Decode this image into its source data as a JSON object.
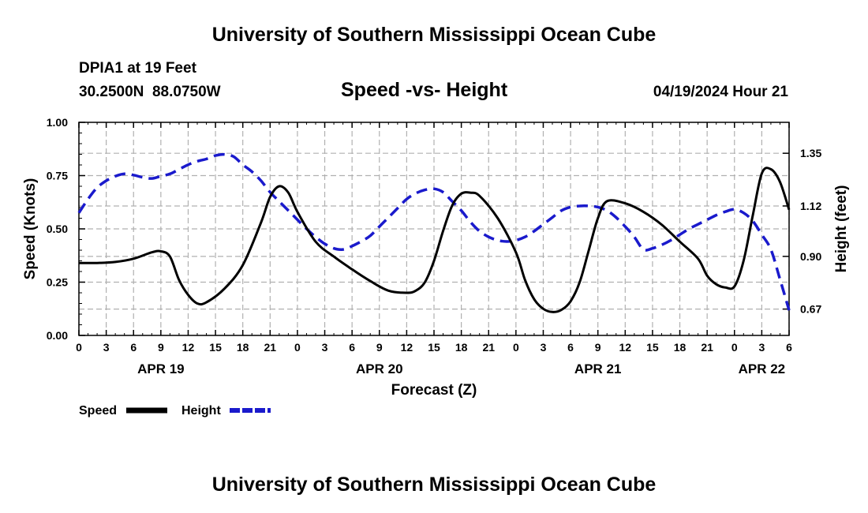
{
  "page": {
    "title": "University of Southern Mississippi Ocean Cube",
    "footer_title": "University of Southern Mississippi Ocean Cube",
    "station": "DPIA1 at 19 Feet",
    "coords": "30.2500N  88.0750W",
    "chart_title": "Speed -vs- Height",
    "datetime": "04/19/2024 Hour 21"
  },
  "colors": {
    "speed": "#000000",
    "height": "#1a1acc",
    "grid": "#b0b0b0"
  },
  "chart_data": {
    "type": "line",
    "title": "Speed -vs- Height",
    "xlabel": "Forecast (Z)",
    "ylabel_left": "Speed (Knots)",
    "ylabel_right": "Height (feet)",
    "x_range_hours": [
      0,
      78
    ],
    "x_tick_step_hours": 3,
    "x_tick_labels": [
      "0",
      "3",
      "6",
      "9",
      "12",
      "15",
      "18",
      "21",
      "0",
      "3",
      "6",
      "9",
      "12",
      "15",
      "18",
      "21",
      "0",
      "3",
      "6",
      "9",
      "12",
      "15",
      "18",
      "21",
      "0",
      "3",
      "6"
    ],
    "day_labels": [
      {
        "label": "APR 19",
        "hour": 9
      },
      {
        "label": "APR 20",
        "hour": 33
      },
      {
        "label": "APR 21",
        "hour": 57
      },
      {
        "label": "APR 22",
        "hour": 75
      }
    ],
    "y_left": {
      "range": [
        0,
        1
      ],
      "ticks": [
        "0.00",
        "0.25",
        "0.50",
        "0.75",
        "1.00"
      ],
      "tick_values": [
        0,
        0.25,
        0.5,
        0.75,
        1.0
      ]
    },
    "y_right": {
      "range": [
        0.555,
        1.485
      ],
      "ticks": [
        "0.67",
        "0.90",
        "1.12",
        "1.35"
      ],
      "tick_values": [
        0.67,
        0.9,
        1.12,
        1.35
      ]
    },
    "legend": {
      "placement": "bottom-left",
      "entries": [
        "Speed",
        "Height"
      ]
    },
    "series": [
      {
        "name": "Speed",
        "axis": "left",
        "style": "solid",
        "x": [
          0,
          2,
          4,
          6,
          8,
          9,
          10,
          11,
          12,
          13,
          14,
          16,
          18,
          20,
          21,
          22,
          23,
          24,
          26,
          28,
          30,
          32,
          34,
          36,
          37,
          38,
          39,
          40,
          41,
          42,
          43,
          44,
          46,
          48,
          49,
          50,
          51,
          52,
          53,
          54,
          55,
          56,
          57,
          58,
          60,
          62,
          64,
          66,
          68,
          69,
          70,
          71,
          72,
          73,
          74,
          75,
          76,
          77,
          78
        ],
        "values": [
          0.34,
          0.34,
          0.345,
          0.36,
          0.39,
          0.395,
          0.37,
          0.26,
          0.19,
          0.15,
          0.155,
          0.22,
          0.33,
          0.53,
          0.65,
          0.7,
          0.67,
          0.58,
          0.44,
          0.37,
          0.31,
          0.255,
          0.21,
          0.2,
          0.21,
          0.25,
          0.35,
          0.49,
          0.61,
          0.665,
          0.67,
          0.655,
          0.55,
          0.39,
          0.26,
          0.17,
          0.125,
          0.11,
          0.12,
          0.16,
          0.25,
          0.4,
          0.55,
          0.63,
          0.62,
          0.58,
          0.52,
          0.44,
          0.36,
          0.28,
          0.24,
          0.225,
          0.23,
          0.35,
          0.56,
          0.76,
          0.78,
          0.72,
          0.59
        ]
      },
      {
        "name": "Height",
        "axis": "right",
        "style": "dashed",
        "x": [
          0,
          1,
          2,
          3,
          4,
          5,
          6,
          7,
          8,
          9,
          10,
          11,
          12,
          13,
          14,
          15,
          16,
          17,
          18,
          19,
          20,
          21,
          22,
          23,
          24,
          25,
          26,
          27,
          28,
          29,
          30,
          31,
          32,
          33,
          34,
          35,
          36,
          37,
          38,
          39,
          40,
          41,
          42,
          43,
          44,
          45,
          46,
          47,
          48,
          49,
          50,
          51,
          52,
          53,
          54,
          55,
          56,
          57,
          58,
          59,
          60,
          61,
          62,
          63,
          64,
          65,
          66,
          67,
          68,
          69,
          70,
          71,
          72,
          73,
          74,
          75,
          76,
          77,
          78
        ],
        "values": [
          1.09,
          1.15,
          1.2,
          1.23,
          1.25,
          1.26,
          1.255,
          1.245,
          1.24,
          1.25,
          1.26,
          1.28,
          1.3,
          1.315,
          1.325,
          1.34,
          1.345,
          1.335,
          1.3,
          1.27,
          1.23,
          1.18,
          1.14,
          1.1,
          1.06,
          1.02,
          0.985,
          0.955,
          0.935,
          0.93,
          0.945,
          0.965,
          0.99,
          1.03,
          1.07,
          1.11,
          1.15,
          1.175,
          1.19,
          1.195,
          1.18,
          1.14,
          1.1,
          1.05,
          1.01,
          0.985,
          0.97,
          0.965,
          0.97,
          0.985,
          1.01,
          1.04,
          1.07,
          1.1,
          1.115,
          1.12,
          1.12,
          1.115,
          1.1,
          1.07,
          1.03,
          0.985,
          0.93,
          0.935,
          0.95,
          0.97,
          0.995,
          1.02,
          1.04,
          1.06,
          1.08,
          1.095,
          1.105,
          1.09,
          1.055,
          0.995,
          0.93,
          0.8,
          0.665
        ]
      }
    ]
  }
}
